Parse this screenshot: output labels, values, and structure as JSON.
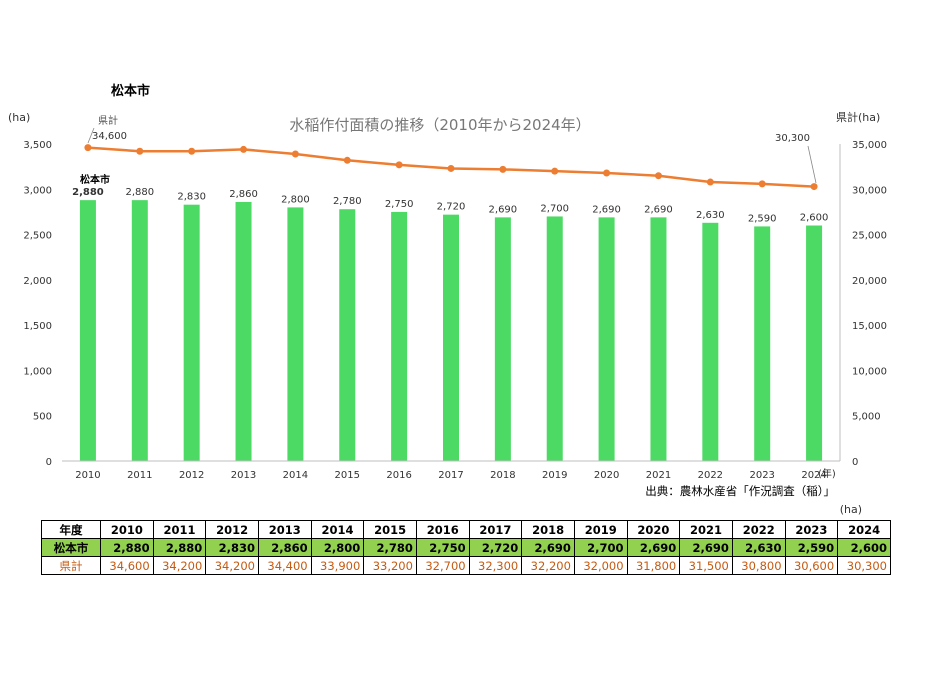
{
  "header": {
    "city_title": "松本市"
  },
  "chart_data": {
    "type": "bar+line",
    "title": "水稲作付面積の推移（2010年から2024年）",
    "ylabel_left": "(ha)",
    "ylabel_right": "県計(ha)",
    "xlabel": "(年)",
    "categories": [
      "2010",
      "2011",
      "2012",
      "2013",
      "2014",
      "2015",
      "2016",
      "2017",
      "2018",
      "2019",
      "2020",
      "2021",
      "2022",
      "2023",
      "2024"
    ],
    "ylim_left": [
      0,
      3500
    ],
    "ylim_right": [
      0,
      35000
    ],
    "yticks_left": [
      0,
      500,
      1000,
      1500,
      2000,
      2500,
      3000,
      3500
    ],
    "yticks_right": [
      0,
      5000,
      10000,
      15000,
      20000,
      25000,
      30000,
      35000
    ],
    "series": [
      {
        "name": "松本市",
        "type": "bar",
        "axis": "left",
        "color": "#4cd964",
        "values": [
          2880,
          2880,
          2830,
          2860,
          2800,
          2780,
          2750,
          2720,
          2690,
          2700,
          2690,
          2690,
          2630,
          2590,
          2600
        ]
      },
      {
        "name": "県計",
        "type": "line",
        "axis": "right",
        "color": "#ed7d31",
        "values": [
          34600,
          34200,
          34200,
          34400,
          33900,
          33200,
          32700,
          32300,
          32200,
          32000,
          31800,
          31500,
          30800,
          30600,
          30300
        ]
      }
    ],
    "annotations": {
      "series_label_bar": "松本市",
      "series_label_line": "県計",
      "first_line_value": "34,600",
      "last_line_value": "30,300"
    },
    "source": "出典：農林水産省「作況調査（稲）」"
  },
  "table": {
    "unit": "(ha)",
    "header_label": "年度",
    "years": [
      "2010",
      "2011",
      "2012",
      "2013",
      "2014",
      "2015",
      "2016",
      "2017",
      "2018",
      "2019",
      "2020",
      "2021",
      "2022",
      "2023",
      "2024"
    ],
    "rows": [
      {
        "label": "松本市",
        "cells": [
          "2,880",
          "2,880",
          "2,830",
          "2,860",
          "2,800",
          "2,780",
          "2,750",
          "2,720",
          "2,690",
          "2,700",
          "2,690",
          "2,690",
          "2,630",
          "2,590",
          "2,600"
        ]
      },
      {
        "label": "県計",
        "cells": [
          "34,600",
          "34,200",
          "34,200",
          "34,400",
          "33,900",
          "33,200",
          "32,700",
          "32,300",
          "32,200",
          "32,000",
          "31,800",
          "31,500",
          "30,800",
          "30,600",
          "30,300"
        ]
      }
    ]
  }
}
